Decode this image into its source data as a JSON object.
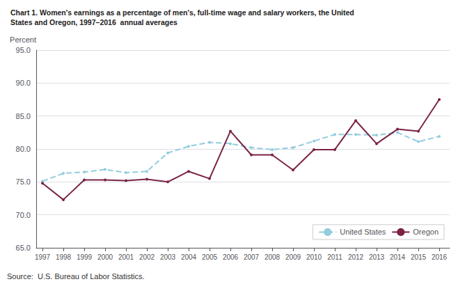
{
  "chart_data": {
    "type": "line",
    "title": "Chart 1. Women's earnings as a percentage of men's, full-time wage and salary workers, the United\nStates and Oregon, 1997–2016  annual averages",
    "y_label": "Percent",
    "annotations": [
      "Source:  U.S. Bureau of Labor Statistics."
    ],
    "x": [
      1997,
      1998,
      1999,
      2000,
      2001,
      2002,
      2003,
      2004,
      2005,
      2006,
      2007,
      2008,
      2009,
      2010,
      2011,
      2012,
      2013,
      2014,
      2015,
      2016
    ],
    "series": [
      {
        "name": "United States",
        "color": "#92CDDC",
        "line_style": "dashed",
        "marker": "circle",
        "values": [
          75.1,
          76.3,
          76.5,
          76.9,
          76.4,
          76.6,
          79.4,
          80.4,
          81.0,
          80.8,
          80.2,
          79.9,
          80.2,
          81.2,
          82.2,
          82.2,
          82.1,
          82.5,
          81.1,
          81.9
        ]
      },
      {
        "name": "Oregon",
        "color": "#7B2346",
        "line_style": "solid",
        "marker": "circle",
        "values": [
          74.8,
          72.3,
          75.3,
          75.3,
          75.2,
          75.4,
          75.0,
          76.6,
          75.5,
          82.7,
          79.1,
          79.1,
          76.8,
          79.9,
          79.9,
          84.3,
          80.8,
          83.0,
          82.7,
          87.5
        ]
      }
    ],
    "xlim": [
      1996.7,
      2016.5
    ],
    "xticks": [
      1997,
      1998,
      1999,
      2000,
      2001,
      2002,
      2003,
      2004,
      2005,
      2006,
      2007,
      2008,
      2009,
      2010,
      2011,
      2012,
      2013,
      2014,
      2015,
      2016
    ],
    "ylim": [
      65.0,
      95.0
    ],
    "yticks": [
      {
        "value": 65.0,
        "label": "65.0"
      },
      {
        "value": 70.0,
        "label": "70.0"
      },
      {
        "value": 75.0,
        "label": "75.0"
      },
      {
        "value": 80.0,
        "label": "80.0"
      },
      {
        "value": 85.0,
        "label": "85.0"
      },
      {
        "value": 90.0,
        "label": "90.0"
      },
      {
        "value": 95.0,
        "label": "95.0"
      }
    ],
    "grid": true,
    "legend": "lower right"
  }
}
